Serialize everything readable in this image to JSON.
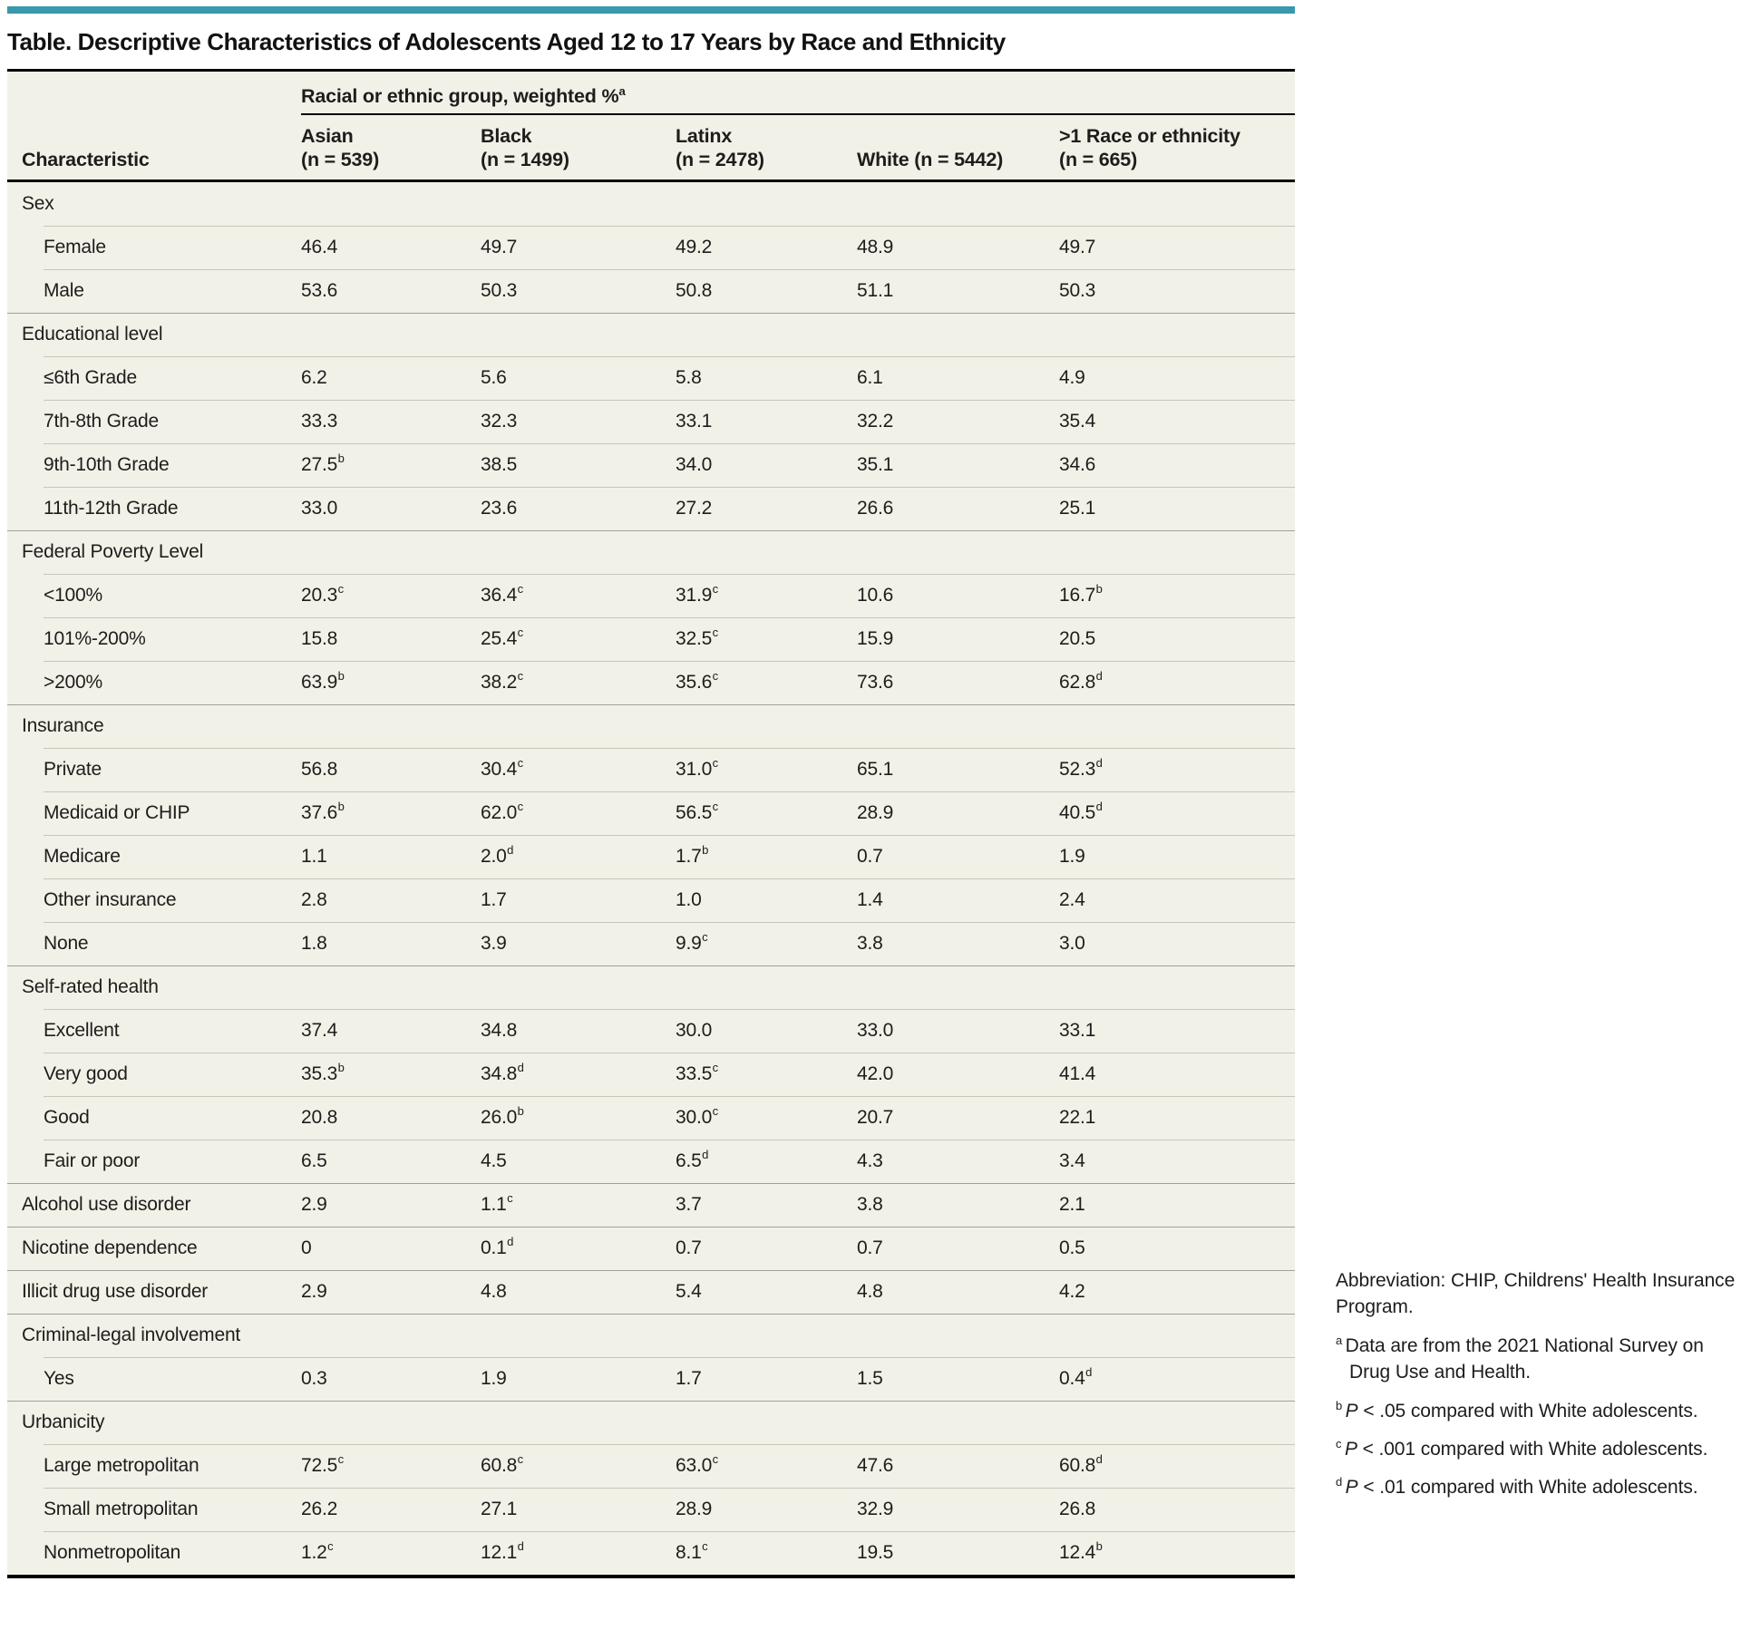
{
  "title": "Table. Descriptive Characteristics of Adolescents Aged 12 to 17 Years by Race and Ethnicity",
  "accent_color": "#3898ac",
  "table_bg_color": "#f2f1e8",
  "table": {
    "spanner": {
      "text": "Racial or ethnic group, weighted %",
      "sup": "a"
    },
    "characteristic_header": "Characteristic",
    "columns": [
      {
        "key": "asian",
        "lines": [
          "Asian",
          "(n = 539)"
        ]
      },
      {
        "key": "black",
        "lines": [
          "Black",
          "(n = 1499)"
        ]
      },
      {
        "key": "latinx",
        "lines": [
          "Latinx",
          "(n = 2478)"
        ]
      },
      {
        "key": "white",
        "lines": [
          "White (n = 5442)"
        ]
      },
      {
        "key": "multiracial",
        "lines": [
          ">1 Race or ethnicity",
          "(n = 665)"
        ]
      }
    ],
    "rows": [
      {
        "type": "section",
        "label": "Sex"
      },
      {
        "type": "sub",
        "label": "Female",
        "cells": [
          "46.4",
          "49.7",
          "49.2",
          "48.9",
          "49.7"
        ]
      },
      {
        "type": "sub",
        "label": "Male",
        "cells": [
          "53.6",
          "50.3",
          "50.8",
          "51.1",
          "50.3"
        ]
      },
      {
        "type": "section",
        "label": "Educational level"
      },
      {
        "type": "sub",
        "label": "≤6th Grade",
        "cells": [
          "6.2",
          "5.6",
          "5.8",
          "6.1",
          "4.9"
        ]
      },
      {
        "type": "sub",
        "label": "7th-8th Grade",
        "cells": [
          "33.3",
          "32.3",
          "33.1",
          "32.2",
          "35.4"
        ]
      },
      {
        "type": "sub",
        "label": "9th-10th Grade",
        "cells": [
          "27.5^b",
          "38.5",
          "34.0",
          "35.1",
          "34.6"
        ]
      },
      {
        "type": "sub",
        "label": "11th-12th Grade",
        "cells": [
          "33.0",
          "23.6",
          "27.2",
          "26.6",
          "25.1"
        ]
      },
      {
        "type": "section",
        "label": "Federal Poverty Level"
      },
      {
        "type": "sub",
        "label": "<100%",
        "cells": [
          "20.3^c",
          "36.4^c",
          "31.9^c",
          "10.6",
          "16.7^b"
        ]
      },
      {
        "type": "sub",
        "label": "101%-200%",
        "cells": [
          "15.8",
          "25.4^c",
          "32.5^c",
          "15.9",
          "20.5"
        ]
      },
      {
        "type": "sub",
        "label": ">200%",
        "cells": [
          "63.9^b",
          "38.2^c",
          "35.6^c",
          "73.6",
          "62.8^d"
        ]
      },
      {
        "type": "section",
        "label": "Insurance"
      },
      {
        "type": "sub",
        "label": "Private",
        "cells": [
          "56.8",
          "30.4^c",
          "31.0^c",
          "65.1",
          "52.3^d"
        ]
      },
      {
        "type": "sub",
        "label": "Medicaid or CHIP",
        "cells": [
          "37.6^b",
          "62.0^c",
          "56.5^c",
          "28.9",
          "40.5^d"
        ]
      },
      {
        "type": "sub",
        "label": "Medicare",
        "cells": [
          "1.1",
          "2.0^d",
          "1.7^b",
          "0.7",
          "1.9"
        ]
      },
      {
        "type": "sub",
        "label": "Other insurance",
        "cells": [
          "2.8",
          "1.7",
          "1.0",
          "1.4",
          "2.4"
        ]
      },
      {
        "type": "sub",
        "label": "None",
        "cells": [
          "1.8",
          "3.9",
          "9.9^c",
          "3.8",
          "3.0"
        ]
      },
      {
        "type": "section",
        "label": "Self-rated health"
      },
      {
        "type": "sub",
        "label": "Excellent",
        "cells": [
          "37.4",
          "34.8",
          "30.0",
          "33.0",
          "33.1"
        ]
      },
      {
        "type": "sub",
        "label": "Very good",
        "cells": [
          "35.3^b",
          "34.8^d",
          "33.5^c",
          "42.0",
          "41.4"
        ]
      },
      {
        "type": "sub",
        "label": "Good",
        "cells": [
          "20.8",
          "26.0^b",
          "30.0^c",
          "20.7",
          "22.1"
        ]
      },
      {
        "type": "sub",
        "label": "Fair or poor",
        "cells": [
          "6.5",
          "4.5",
          "6.5^d",
          "4.3",
          "3.4"
        ]
      },
      {
        "type": "data",
        "label": "Alcohol use disorder",
        "cells": [
          "2.9",
          "1.1^c",
          "3.7",
          "3.8",
          "2.1"
        ]
      },
      {
        "type": "data",
        "label": "Nicotine dependence",
        "cells": [
          "0",
          "0.1^d",
          "0.7",
          "0.7",
          "0.5"
        ]
      },
      {
        "type": "data",
        "label": "Illicit drug use disorder",
        "cells": [
          "2.9",
          "4.8",
          "5.4",
          "4.8",
          "4.2"
        ]
      },
      {
        "type": "section",
        "label": "Criminal-legal involvement"
      },
      {
        "type": "sub",
        "label": "Yes",
        "cells": [
          "0.3",
          "1.9",
          "1.7",
          "1.5",
          "0.4^d"
        ]
      },
      {
        "type": "section",
        "label": "Urbanicity"
      },
      {
        "type": "sub",
        "label": "Large metropolitan",
        "cells": [
          "72.5^c",
          "60.8^c",
          "63.0^c",
          "47.6",
          "60.8^d"
        ]
      },
      {
        "type": "sub",
        "label": "Small metropolitan",
        "cells": [
          "26.2",
          "27.1",
          "28.9",
          "32.9",
          "26.8"
        ]
      },
      {
        "type": "sub",
        "label": "Nonmetropolitan",
        "cells": [
          "1.2^c",
          "12.1^d",
          "8.1^c",
          "19.5",
          "12.4^b"
        ]
      }
    ]
  },
  "footnotes": {
    "abbreviation": "Abbreviation: CHIP, Childrens' Health Insurance Program.",
    "items": [
      {
        "mark": "a",
        "italic_lead": "",
        "text": "Data are from the 2021 National Survey on Drug Use and Health."
      },
      {
        "mark": "b",
        "italic_lead": "P",
        "text": " < .05 compared with White adolescents."
      },
      {
        "mark": "c",
        "italic_lead": "P",
        "text": " < .001 compared with White adolescents."
      },
      {
        "mark": "d",
        "italic_lead": "P",
        "text": " < .01 compared with White adolescents."
      }
    ]
  }
}
